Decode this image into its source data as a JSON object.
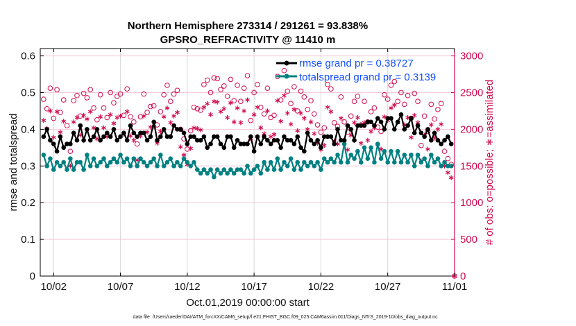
{
  "chart_data": {
    "type": "line",
    "title": "Northern Hemisphere 273314 / 291261 = 93.838%",
    "subtitle": "GPSRO_REFRACTIVITY @ 11410 m",
    "xlabel": "Oct.01,2019 00:00:00 start",
    "ylabel": "rmse and totalspread",
    "y2label": "# of obs: o=possible; ∗=assimilated",
    "footnote": "data file: /Users/raeder/DAI/ATM_forcXX/CAM6_setup/f.e21.FHIST_BGC.f09_025.CAM6assim.011/Diags_NTrS_2019-10/obs_diag_output.nc",
    "xlim": [
      0,
      31
    ],
    "ylim": [
      0,
      0.62
    ],
    "y2lim": [
      0,
      3100
    ],
    "grid": true,
    "legend_position": "top-right",
    "x_ticks": [
      {
        "value": 1,
        "label": "10/02"
      },
      {
        "value": 6,
        "label": "10/07"
      },
      {
        "value": 11,
        "label": "10/12"
      },
      {
        "value": 16,
        "label": "10/17"
      },
      {
        "value": 21,
        "label": "10/22"
      },
      {
        "value": 26,
        "label": "10/27"
      },
      {
        "value": 31,
        "label": "11/01"
      }
    ],
    "y_ticks": [
      {
        "value": 0,
        "label": "0"
      },
      {
        "value": 0.1,
        "label": "0.1"
      },
      {
        "value": 0.2,
        "label": "0.2"
      },
      {
        "value": 0.3,
        "label": "0.3"
      },
      {
        "value": 0.4,
        "label": "0.4"
      },
      {
        "value": 0.5,
        "label": "0.5"
      },
      {
        "value": 0.6,
        "label": "0.6"
      }
    ],
    "y2_ticks": [
      {
        "value": 0,
        "label": "0"
      },
      {
        "value": 500,
        "label": "500"
      },
      {
        "value": 1000,
        "label": "1000"
      },
      {
        "value": 1500,
        "label": "1500"
      },
      {
        "value": 2000,
        "label": "2000"
      },
      {
        "value": 2500,
        "label": "2500"
      },
      {
        "value": 3000,
        "label": "3000"
      }
    ],
    "x_start": 0.25,
    "x_step": 0.25,
    "series": [
      {
        "name": "rmse grand pr = 0.38727",
        "color": "#000000",
        "axis": "left",
        "marker": "dot",
        "values": [
          0.38,
          0.4,
          0.37,
          0.36,
          0.34,
          0.38,
          0.35,
          0.36,
          0.36,
          0.39,
          0.37,
          0.41,
          0.37,
          0.4,
          0.37,
          0.38,
          0.4,
          0.37,
          0.38,
          0.39,
          0.38,
          0.4,
          0.37,
          0.38,
          0.39,
          0.37,
          0.41,
          0.39,
          0.38,
          0.39,
          0.39,
          0.37,
          0.38,
          0.42,
          0.37,
          0.38,
          0.4,
          0.38,
          0.38,
          0.41,
          0.4,
          0.4,
          0.39,
          0.36,
          0.38,
          0.38,
          0.37,
          0.37,
          0.38,
          0.35,
          0.36,
          0.38,
          0.38,
          0.36,
          0.35,
          0.38,
          0.38,
          0.35,
          0.37,
          0.36,
          0.36,
          0.36,
          0.38,
          0.34,
          0.38,
          0.36,
          0.38,
          0.37,
          0.36,
          0.37,
          0.37,
          0.35,
          0.38,
          0.37,
          0.37,
          0.36,
          0.38,
          0.35,
          0.34,
          0.39,
          0.37,
          0.36,
          0.37,
          0.35,
          0.38,
          0.38,
          0.38,
          0.36,
          0.4,
          0.37,
          0.37,
          0.41,
          0.4,
          0.37,
          0.41,
          0.41,
          0.41,
          0.42,
          0.42,
          0.41,
          0.43,
          0.42,
          0.4,
          0.43,
          0.43,
          0.4,
          0.42,
          0.44,
          0.4,
          0.41,
          0.43,
          0.39,
          0.41,
          0.39,
          0.38,
          0.4,
          0.37,
          0.39,
          0.37,
          0.36,
          0.37,
          0.38,
          0.36,
          null
        ]
      },
      {
        "name": "totalspread grand pr = 0.3139",
        "color": "#008080",
        "axis": "left",
        "marker": "dot",
        "values": [
          0.33,
          0.3,
          0.32,
          0.29,
          0.31,
          0.3,
          0.31,
          0.29,
          0.32,
          0.29,
          0.31,
          0.31,
          0.29,
          0.33,
          0.3,
          0.32,
          0.3,
          0.31,
          0.32,
          0.3,
          0.31,
          0.32,
          0.31,
          0.33,
          0.31,
          0.32,
          0.3,
          0.32,
          0.3,
          0.32,
          0.31,
          0.3,
          0.31,
          0.32,
          0.3,
          0.33,
          0.3,
          0.31,
          0.32,
          0.3,
          0.31,
          0.3,
          0.32,
          0.31,
          0.3,
          0.31,
          0.29,
          0.28,
          0.29,
          0.28,
          0.29,
          0.27,
          0.29,
          0.28,
          0.29,
          0.28,
          0.29,
          0.28,
          0.29,
          0.29,
          0.28,
          0.3,
          0.28,
          0.29,
          0.3,
          0.28,
          0.31,
          0.29,
          0.31,
          0.29,
          0.32,
          0.29,
          0.31,
          0.3,
          0.32,
          0.29,
          0.31,
          0.29,
          0.31,
          0.3,
          0.31,
          0.3,
          0.31,
          0.29,
          0.32,
          0.31,
          0.32,
          0.31,
          0.33,
          0.31,
          0.36,
          0.31,
          0.33,
          0.32,
          0.34,
          0.31,
          0.35,
          0.32,
          0.35,
          0.31,
          0.36,
          0.32,
          0.34,
          0.31,
          0.34,
          0.31,
          0.34,
          0.31,
          0.33,
          0.31,
          0.33,
          0.3,
          0.33,
          0.31,
          0.32,
          0.3,
          0.33,
          0.31,
          0.32,
          0.3,
          0.31,
          0.3,
          0.3,
          null
        ]
      },
      {
        "name": "possible",
        "color": "#d10a4f",
        "axis": "right",
        "marker": "circle",
        "values": [
          2410,
          2280,
          2560,
          2150,
          2540,
          2230,
          2400,
          2050,
          1700,
          2390,
          2460,
          2180,
          2490,
          2430,
          2540,
          2290,
          2130,
          2470,
          2290,
          2160,
          2500,
          2360,
          2450,
          2480,
          2190,
          2550,
          2170,
          2100,
          1800,
          2170,
          2480,
          2230,
          2310,
          2320,
          2060,
          2240,
          2470,
          2600,
          2380,
          2480,
          2530,
          2000,
          1870,
          1730,
          1980,
          2300,
          2280,
          2260,
          2610,
          2670,
          2500,
          2700,
          2690,
          2540,
          2590,
          2450,
          2680,
          2390,
          2600,
          2380,
          2560,
          2730,
          2120,
          2500,
          2610,
          2300,
          2210,
          2560,
          2160,
          2190,
          2720,
          2400,
          2800,
          2520,
          2350,
          2580,
          2250,
          2520,
          2440,
          2270,
          2390,
          2210,
          2060,
          1960,
          2020,
          2610,
          2550,
          2090,
          2040,
          2440,
          2100,
          1960,
          2180,
          2380,
          2450,
          2060,
          2380,
          2100,
          2240,
          2290,
          2030,
          1970,
          2470,
          2410,
          2600,
          2650,
          2380,
          2500,
          2340,
          2460,
          2150,
          2490,
          2380,
          1780,
          2180,
          1970,
          2340,
          2140,
          2270,
          2350,
          1700,
          1600,
          1520,
          0
        ]
      },
      {
        "name": "assimilated",
        "color": "#d10a4f",
        "axis": "right",
        "marker": "asterisk",
        "values": [
          2120,
          2010,
          2250,
          1890,
          2240,
          1960,
          2110,
          1800,
          1500,
          2100,
          2160,
          1920,
          2190,
          2140,
          2240,
          2020,
          1870,
          2170,
          2020,
          1900,
          2200,
          2080,
          2160,
          2180,
          1930,
          2240,
          1910,
          1850,
          1580,
          1910,
          2180,
          1960,
          2030,
          2040,
          1810,
          1970,
          2170,
          2290,
          2090,
          2180,
          2230,
          1760,
          1650,
          1520,
          1740,
          2020,
          2010,
          1990,
          2300,
          2350,
          2200,
          2380,
          2370,
          2240,
          2280,
          2160,
          2360,
          2100,
          2290,
          2090,
          2250,
          2400,
          1870,
          2200,
          2300,
          2020,
          1940,
          2250,
          1900,
          1930,
          2390,
          2110,
          2460,
          2220,
          2070,
          2270,
          1980,
          2220,
          2150,
          2000,
          2100,
          1940,
          1810,
          1720,
          1780,
          2300,
          2240,
          1840,
          1800,
          2150,
          1850,
          1720,
          1920,
          2090,
          2160,
          1810,
          2090,
          1850,
          1970,
          2020,
          1790,
          1730,
          2170,
          2120,
          2290,
          2330,
          2090,
          2200,
          2060,
          2160,
          1890,
          2190,
          2090,
          1570,
          1920,
          1730,
          2060,
          1880,
          2000,
          2070,
          1500,
          1410,
          1340,
          0
        ]
      }
    ]
  }
}
